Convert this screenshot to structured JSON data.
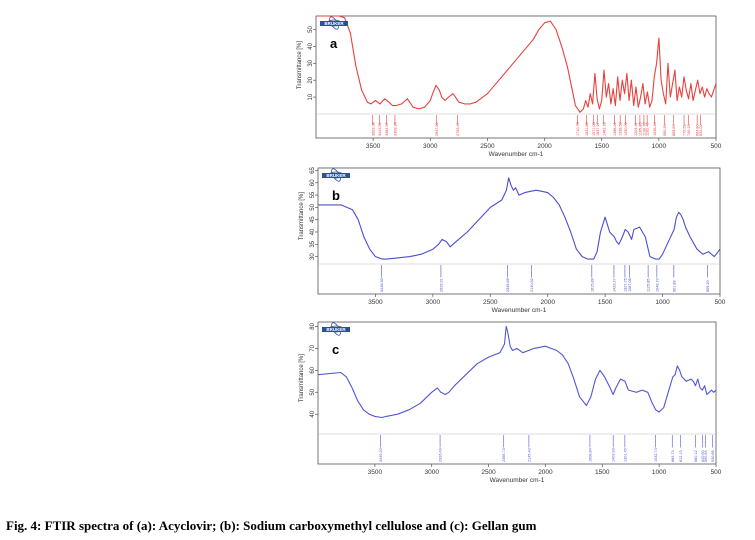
{
  "caption": "Fig. 4: FTIR spectra of (a): Acyclovir; (b): Sodium carboxymethyl cellulose and (c): Gellan gum",
  "logo_text": "BRUKER",
  "chart_data": [
    {
      "type": "line",
      "panel_label": "a",
      "color": "#e8403c",
      "xlabel": "Wavenumber cm-1",
      "ylabel": "Transmittance [%]",
      "xlim": [
        4000,
        500
      ],
      "ylim": [
        0,
        58
      ],
      "xticks": [
        3500,
        3000,
        2500,
        2000,
        1500,
        1000,
        500
      ],
      "yticks": [
        10,
        20,
        30,
        40,
        50
      ],
      "x": [
        4000,
        3800,
        3750,
        3700,
        3650,
        3600,
        3550,
        3520,
        3480,
        3440,
        3400,
        3360,
        3330,
        3300,
        3250,
        3200,
        3150,
        3100,
        3050,
        3000,
        2980,
        2950,
        2920,
        2900,
        2870,
        2840,
        2800,
        2750,
        2700,
        2650,
        2600,
        2500,
        2400,
        2300,
        2200,
        2100,
        2050,
        2000,
        1950,
        1900,
        1850,
        1800,
        1760,
        1730,
        1700,
        1690,
        1660,
        1640,
        1620,
        1600,
        1580,
        1560,
        1540,
        1520,
        1500,
        1480,
        1460,
        1440,
        1420,
        1400,
        1380,
        1360,
        1340,
        1320,
        1300,
        1280,
        1260,
        1240,
        1220,
        1200,
        1180,
        1160,
        1140,
        1120,
        1100,
        1080,
        1060,
        1040,
        1020,
        1000,
        980,
        960,
        940,
        920,
        900,
        880,
        860,
        840,
        820,
        800,
        780,
        760,
        740,
        720,
        700,
        680,
        660,
        640,
        620,
        600,
        580,
        560,
        540,
        520,
        500
      ],
      "y": [
        58,
        58,
        57,
        48,
        28,
        14,
        7,
        6,
        8,
        6,
        9,
        7,
        5,
        5,
        6,
        9,
        4,
        3,
        4,
        8,
        12,
        17,
        14,
        10,
        8,
        10,
        12,
        7,
        6,
        6,
        7,
        12,
        20,
        28,
        36,
        44,
        50,
        54,
        55,
        50,
        40,
        28,
        15,
        5,
        2,
        1,
        3,
        8,
        4,
        12,
        6,
        24,
        9,
        3,
        8,
        26,
        10,
        18,
        6,
        15,
        5,
        22,
        8,
        20,
        12,
        24,
        8,
        20,
        5,
        16,
        4,
        10,
        18,
        6,
        13,
        4,
        8,
        22,
        30,
        45,
        20,
        12,
        6,
        30,
        10,
        18,
        26,
        8,
        16,
        10,
        22,
        14,
        9,
        18,
        8,
        14,
        20,
        12,
        16,
        10,
        15,
        12,
        10,
        14,
        18
      ],
      "peak_labels": [
        "3503.38",
        "3443.51",
        "3384.57",
        "3309.34",
        "2947.61",
        "2763.47",
        "1710.75",
        "1631.83",
        "1571.03",
        "1537.27",
        "1482.18",
        "1388.22",
        "1338.53",
        "1290.09",
        "1204.31",
        "1165.85",
        "1130.70",
        "1102.40",
        "1036.44",
        "950.39",
        "869.89",
        "779.59",
        "740.16",
        "664.80",
        "634.02"
      ]
    },
    {
      "type": "line",
      "panel_label": "b",
      "color": "#4a4fd0",
      "xlabel": "Wavenumber cm-1",
      "ylabel": "Transmittance [%]",
      "xlim": [
        4000,
        500
      ],
      "ylim": [
        27,
        66
      ],
      "xticks": [
        3500,
        3000,
        2500,
        2000,
        1500,
        1000,
        500
      ],
      "yticks": [
        30,
        35,
        40,
        45,
        50,
        55,
        60,
        65
      ],
      "x": [
        4000,
        3800,
        3700,
        3650,
        3600,
        3550,
        3500,
        3440,
        3400,
        3300,
        3200,
        3100,
        3000,
        2950,
        2920,
        2880,
        2850,
        2800,
        2700,
        2600,
        2500,
        2400,
        2360,
        2340,
        2320,
        2300,
        2280,
        2250,
        2200,
        2100,
        2000,
        1950,
        1900,
        1850,
        1800,
        1750,
        1700,
        1650,
        1600,
        1570,
        1540,
        1500,
        1460,
        1420,
        1400,
        1380,
        1350,
        1325,
        1300,
        1270,
        1250,
        1200,
        1150,
        1110,
        1060,
        1030,
        1000,
        950,
        900,
        880,
        860,
        840,
        820,
        800,
        760,
        700,
        650,
        600,
        550,
        500
      ],
      "y": [
        51,
        51,
        49,
        45,
        38,
        33,
        30,
        29,
        29,
        29.5,
        30,
        31,
        33,
        35,
        37,
        36,
        34,
        36,
        40,
        45,
        50,
        53,
        57,
        62,
        59,
        57,
        58,
        55,
        56,
        57,
        56,
        54,
        51,
        46,
        40,
        33,
        30,
        29,
        29,
        32,
        40,
        46,
        40,
        38,
        36,
        35,
        38,
        41,
        40,
        37,
        41,
        42,
        38,
        30,
        29,
        29,
        31,
        36,
        41,
        46,
        48,
        47,
        45,
        42,
        38,
        33,
        31,
        32,
        30,
        33
      ],
      "peak_labels": [
        "3446.50",
        "2929.91",
        "2349.69",
        "2140.52",
        "1615.89",
        "1423.27",
        "1327.75",
        "1287.06",
        "1125.85",
        "1049.70",
        "901.89",
        "609.20"
      ]
    },
    {
      "type": "line",
      "panel_label": "c",
      "color": "#5256d8",
      "xlabel": "Wavenumber cm-1",
      "ylabel": "Transmittance [%]",
      "xlim": [
        4000,
        500
      ],
      "ylim": [
        31,
        82
      ],
      "xticks": [
        3500,
        3000,
        2500,
        2000,
        1500,
        1000,
        500
      ],
      "yticks": [
        40,
        50,
        60,
        70,
        80
      ],
      "x": [
        4000,
        3800,
        3750,
        3700,
        3650,
        3600,
        3550,
        3500,
        3440,
        3400,
        3300,
        3200,
        3100,
        3000,
        2950,
        2920,
        2880,
        2850,
        2800,
        2700,
        2600,
        2500,
        2400,
        2360,
        2345,
        2330,
        2310,
        2290,
        2250,
        2200,
        2100,
        2000,
        1950,
        1900,
        1850,
        1800,
        1750,
        1700,
        1640,
        1600,
        1560,
        1520,
        1480,
        1440,
        1405,
        1380,
        1340,
        1300,
        1270,
        1200,
        1150,
        1100,
        1060,
        1030,
        1000,
        960,
        920,
        880,
        860,
        840,
        820,
        800,
        760,
        720,
        700,
        680,
        660,
        640,
        620,
        600,
        580,
        560,
        540,
        520,
        500
      ],
      "y": [
        58,
        59,
        57,
        52,
        46,
        42,
        40,
        39,
        38.5,
        39,
        40,
        42,
        45,
        50,
        52,
        50,
        49,
        50,
        53,
        58,
        63,
        66,
        68,
        72,
        80,
        77,
        71,
        69,
        70,
        68,
        70,
        71,
        70,
        69,
        67,
        63,
        56,
        48,
        44,
        48,
        56,
        60,
        57,
        53,
        49,
        52,
        56,
        55,
        51,
        50,
        51,
        50,
        45,
        42,
        41,
        43,
        50,
        57,
        58,
        62,
        60,
        57,
        55,
        56,
        55,
        53,
        56,
        52,
        51,
        53,
        49,
        50,
        51,
        50,
        51
      ],
      "peak_labels": [
        "3449.20",
        "2926.49",
        "2366.73",
        "2145.43",
        "1608.84",
        "1403.93",
        "1301.45",
        "1032.74",
        "884.73",
        "812.13",
        "680.12",
        "620.50",
        "590.93",
        "530.88"
      ]
    }
  ]
}
